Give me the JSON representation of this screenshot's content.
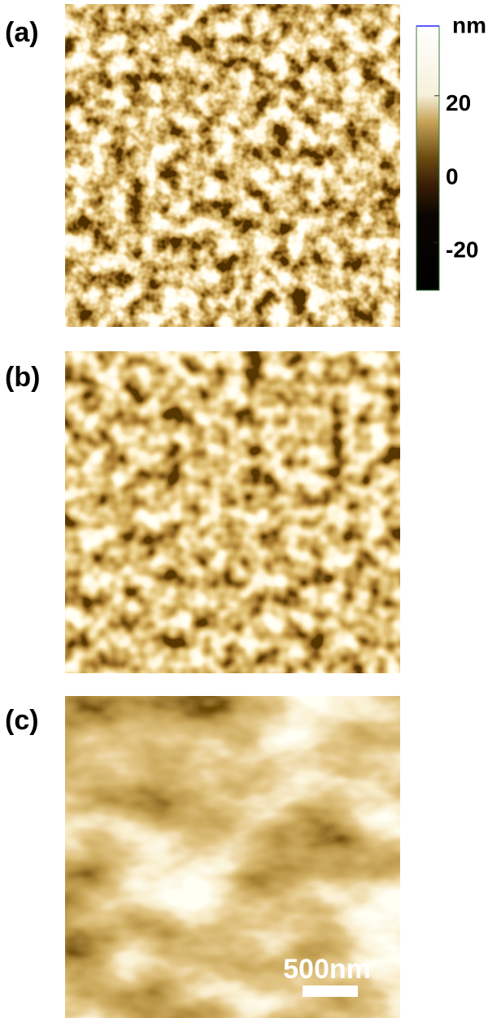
{
  "panels": [
    {
      "label": "(a)"
    },
    {
      "label": "(b)"
    },
    {
      "label": "(c)"
    }
  ],
  "colorbar": {
    "unit": "nm",
    "lim": [
      -33,
      39
    ],
    "ticks": [
      20,
      0,
      -20
    ]
  },
  "scale_bar": "500nm"
}
